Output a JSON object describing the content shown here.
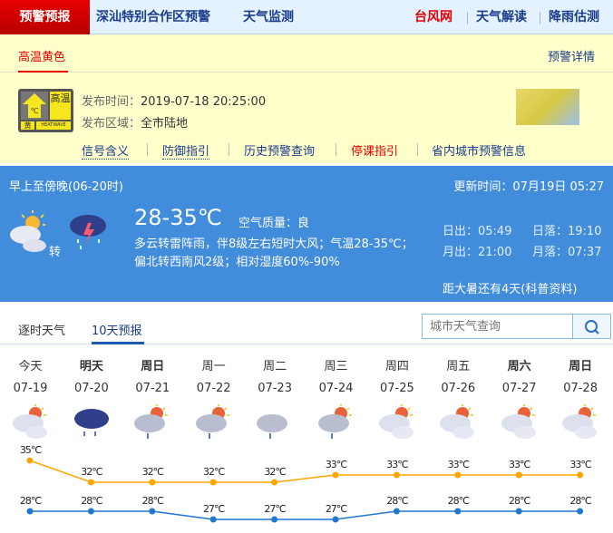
{
  "topnav": {
    "active": "预警预报",
    "items": [
      "深汕特别合作区预警",
      "天气监测"
    ],
    "right": [
      "台风网",
      "天气解读",
      "降雨估测"
    ]
  },
  "warning": {
    "tab": "高温黄色",
    "detail": "预警详情",
    "icon_text": {
      "main": "高温",
      "level": "黄",
      "en": "HEATWAVE",
      "unit": "℃"
    },
    "time_label": "发布时间：",
    "time": "2019-07-18 20:25:00",
    "area_label": "发布区域：",
    "area": "全市陆地",
    "links": [
      "信号含义",
      "防御指引",
      "历史预警查询",
      "停课指引",
      "省内城市预警信息"
    ]
  },
  "now": {
    "period": "早上至傍晚(06-20时)",
    "update": "更新时间：07月19日 05:27",
    "turn": "转",
    "temp": "28-35℃",
    "aq_label": "空气质量：",
    "aq": "良",
    "desc1": "多云转雷阵雨，伴8级左右短时大风；气温28-35℃；",
    "desc2": "偏北转西南风2级；相对湿度60%-90%",
    "sunrise": "日出：05:49",
    "sunset": "日落：19:10",
    "moonrise": "月出：21:00",
    "moonset": "月落：07:37",
    "solar_term": "距大暑还有4天(科普资料)"
  },
  "tabs": {
    "hourly": "逐时天气",
    "tenday": "10天预报",
    "search_placeholder": "城市天气查询"
  },
  "forecast": {
    "days": [
      "今天",
      "明天",
      "周日",
      "周一",
      "周二",
      "周三",
      "周四",
      "周五",
      "周六",
      "周日"
    ],
    "bold": [
      false,
      true,
      true,
      false,
      false,
      false,
      false,
      false,
      true,
      true
    ],
    "dates": [
      "07-19",
      "07-20",
      "07-21",
      "07-22",
      "07-23",
      "07-24",
      "07-25",
      "07-26",
      "07-27",
      "07-28"
    ],
    "icons": [
      "partly-cloudy",
      "rain",
      "partly-cloudy-shower",
      "partly-cloudy-shower",
      "cloudy-shower",
      "partly-cloudy-shower",
      "partly-cloudy",
      "partly-cloudy",
      "partly-cloudy",
      "partly-cloudy"
    ],
    "high": [
      35,
      32,
      32,
      32,
      32,
      33,
      33,
      33,
      33,
      33
    ],
    "low": [
      28,
      28,
      28,
      27,
      27,
      27,
      28,
      28,
      28,
      28
    ],
    "unit": "℃",
    "colors": {
      "high": "#ffa500",
      "low": "#1f77d4"
    }
  }
}
